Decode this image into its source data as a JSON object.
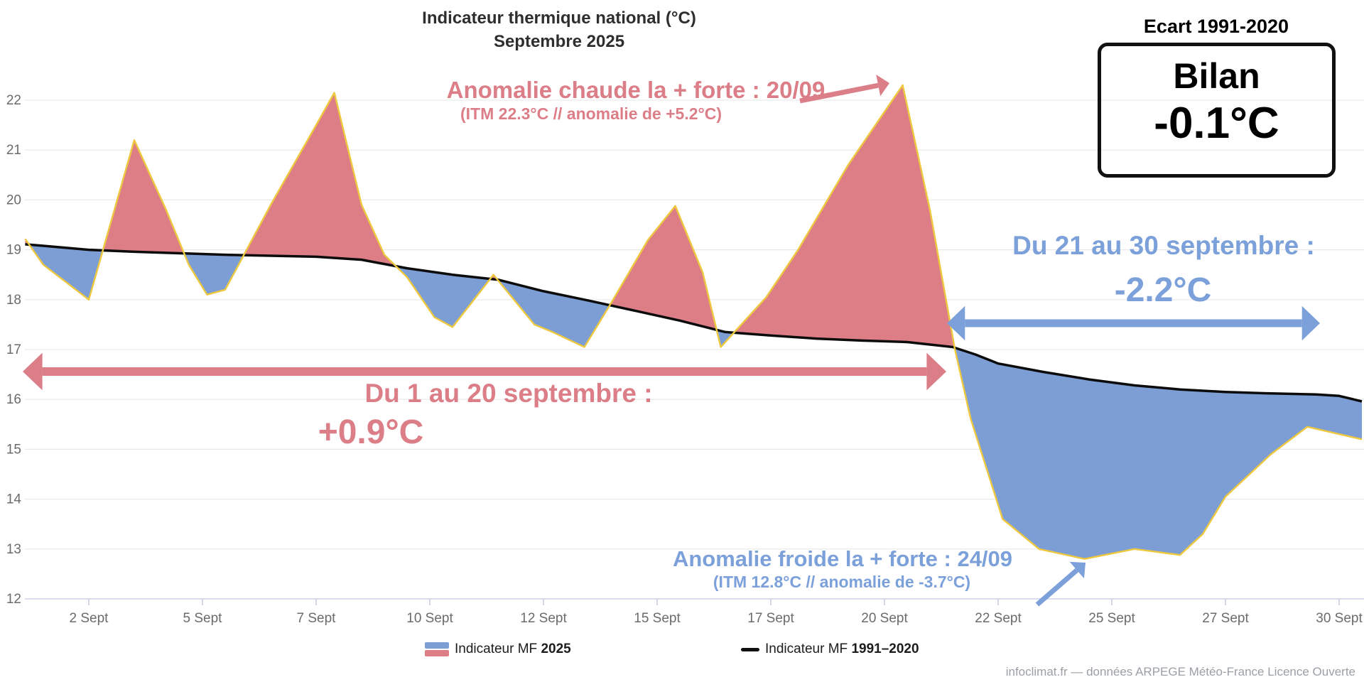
{
  "title": {
    "line1": "Indicateur thermique national (°C)",
    "line2": "Septembre 2025"
  },
  "bilan": {
    "label": "Ecart 1991-2020",
    "title": "Bilan",
    "value": "-0.1°C"
  },
  "annotations": {
    "warm_peak": {
      "line1": "Anomalie chaude la + forte : 20/09",
      "line2": "(ITM 22.3°C // anomalie de +5.2°C)",
      "color": "#dc7e88"
    },
    "warm_period": {
      "line1": "Du 1 au 20 septembre :",
      "line2": "+0.9°C",
      "color": "#dc7e88"
    },
    "cold_period": {
      "line1": "Du 21 au 30 septembre :",
      "line2": "-2.2°C",
      "color": "#7ba0da"
    },
    "cold_peak": {
      "line1": "Anomalie froide la + forte : 24/09",
      "line2": "(ITM 12.8°C // anomalie de -3.7°C)",
      "color": "#7ba0da"
    }
  },
  "legend": [
    {
      "pre": "Indicateur MF ",
      "bold": "2025",
      "swatch_top": "#7d9ed5",
      "swatch_bottom": "#dd7e87"
    },
    {
      "pre": "Indicateur MF ",
      "bold": "1991–2020",
      "swatch_line": "#111111"
    }
  ],
  "attribution": "infoclimat.fr — données ARPEGE Météo-France Licence Ouverte",
  "chart_data": {
    "type": "area",
    "title": "Indicateur thermique national (°C) — Septembre 2025",
    "xlabel": "",
    "ylabel": "",
    "ylim": [
      12,
      22
    ],
    "grid": true,
    "legend_position": "bottom",
    "y_ticks": [
      12,
      13,
      14,
      15,
      16,
      17,
      18,
      19,
      20,
      21,
      22
    ],
    "x_ticks": [
      {
        "day": 2,
        "label": "2 Sept"
      },
      {
        "day": 4.5,
        "label": "5 Sept"
      },
      {
        "day": 7,
        "label": "7 Sept"
      },
      {
        "day": 9.5,
        "label": "10 Sept"
      },
      {
        "day": 12,
        "label": "12 Sept"
      },
      {
        "day": 14.5,
        "label": "15 Sept"
      },
      {
        "day": 17,
        "label": "17 Sept"
      },
      {
        "day": 19.5,
        "label": "20 Sept"
      },
      {
        "day": 22,
        "label": "22 Sept"
      },
      {
        "day": 24.5,
        "label": "25 Sept"
      },
      {
        "day": 27,
        "label": "27 Sept"
      },
      {
        "day": 29.5,
        "label": "30 Sept"
      }
    ],
    "colors": {
      "warm_fill": "#dd7e87",
      "cold_fill": "#7d9ed5",
      "series_2025_line": "#eec93f",
      "normal_line": "#0c0c0c",
      "gridline": "#e9e9e9",
      "axis_line": "#ccd3e6",
      "tick_mark": "#c3cbdf",
      "tick_text": "#6b6b6b"
    },
    "series": [
      {
        "name": "Indicateur MF 2025",
        "points": [
          [
            0.6,
            19.22
          ],
          [
            1,
            18.7
          ],
          [
            1.5,
            18.35
          ],
          [
            2,
            18.0
          ],
          [
            3,
            21.2
          ],
          [
            3.7,
            19.8
          ],
          [
            4.2,
            18.7
          ],
          [
            4.6,
            18.1
          ],
          [
            5,
            18.2
          ],
          [
            6,
            19.9
          ],
          [
            7,
            21.5
          ],
          [
            7.4,
            22.15
          ],
          [
            8,
            19.9
          ],
          [
            8.5,
            18.9
          ],
          [
            9,
            18.45
          ],
          [
            9.6,
            17.65
          ],
          [
            10,
            17.45
          ],
          [
            10.9,
            18.5
          ],
          [
            11.8,
            17.5
          ],
          [
            12.2,
            17.35
          ],
          [
            12.9,
            17.05
          ],
          [
            13.5,
            17.95
          ],
          [
            14.3,
            19.2
          ],
          [
            14.9,
            19.88
          ],
          [
            15.5,
            18.55
          ],
          [
            15.9,
            17.05
          ],
          [
            16.9,
            18.05
          ],
          [
            17.6,
            19.0
          ],
          [
            18.7,
            20.7
          ],
          [
            19.9,
            22.3
          ],
          [
            20.5,
            19.8
          ],
          [
            21.05,
            17.0
          ],
          [
            21.4,
            15.6
          ],
          [
            22.1,
            13.6
          ],
          [
            22.9,
            13.0
          ],
          [
            23.9,
            12.8
          ],
          [
            25,
            13.0
          ],
          [
            26,
            12.88
          ],
          [
            26.5,
            13.3
          ],
          [
            27,
            14.05
          ],
          [
            28,
            14.9
          ],
          [
            28.8,
            15.45
          ],
          [
            30,
            15.2
          ]
        ]
      },
      {
        "name": "Indicateur MF 1991–2020",
        "points": [
          [
            0.6,
            19.11
          ],
          [
            1,
            19.08
          ],
          [
            2,
            19.0
          ],
          [
            3,
            18.96
          ],
          [
            4,
            18.93
          ],
          [
            5,
            18.9
          ],
          [
            6,
            18.88
          ],
          [
            7,
            18.86
          ],
          [
            8,
            18.8
          ],
          [
            9,
            18.63
          ],
          [
            10,
            18.5
          ],
          [
            11,
            18.4
          ],
          [
            12,
            18.17
          ],
          [
            13,
            17.98
          ],
          [
            14,
            17.78
          ],
          [
            15,
            17.58
          ],
          [
            16,
            17.35
          ],
          [
            17,
            17.28
          ],
          [
            18,
            17.22
          ],
          [
            19,
            17.18
          ],
          [
            20,
            17.15
          ],
          [
            21,
            17.05
          ],
          [
            21.5,
            16.9
          ],
          [
            22,
            16.72
          ],
          [
            23,
            16.55
          ],
          [
            24,
            16.4
          ],
          [
            25,
            16.28
          ],
          [
            26,
            16.2
          ],
          [
            27,
            16.15
          ],
          [
            28,
            16.12
          ],
          [
            29,
            16.1
          ],
          [
            29.5,
            16.07
          ],
          [
            30,
            15.96
          ]
        ]
      }
    ]
  }
}
